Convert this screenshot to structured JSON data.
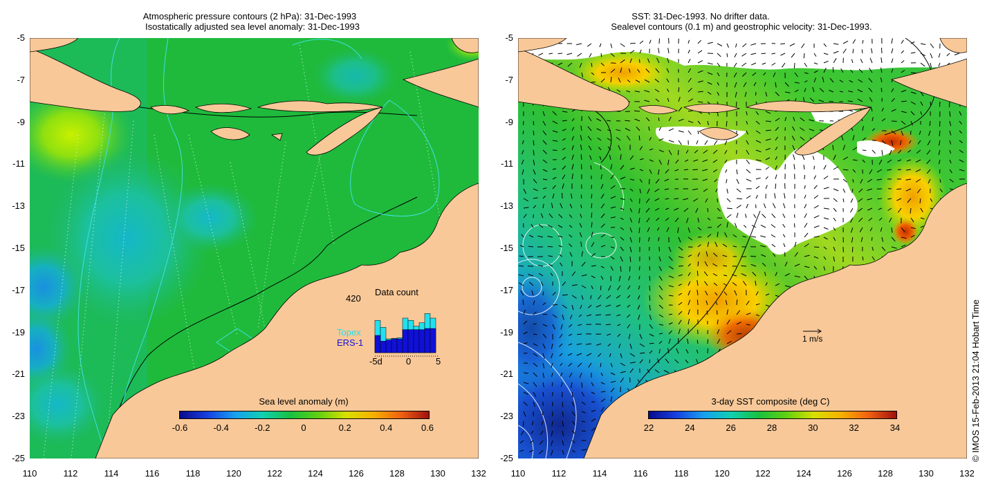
{
  "left_panel": {
    "title_line1": "Atmospheric pressure contours (2 hPa): 31-Dec-1993",
    "title_line2": "Isostatically adjusted sea level anomaly: 31-Dec-1993",
    "colorbar": {
      "label": "Sea level anomaly (m)",
      "ticks": [
        "-0.6",
        "-0.4",
        "-0.2",
        "0",
        "0.2",
        "0.4",
        "0.6"
      ]
    },
    "inset": {
      "title": "Data count",
      "max_label": "420",
      "legend_topex": "Topex",
      "legend_ers1": "ERS-1",
      "x_ticks": [
        "-5d",
        "0",
        "5"
      ],
      "topex_counts": [
        280,
        220,
        120,
        125,
        130,
        300,
        280,
        230,
        260,
        340,
        300
      ],
      "ers1_counts": [
        150,
        100,
        110,
        120,
        120,
        200,
        200,
        200,
        200,
        210,
        210
      ],
      "count_max": 420
    }
  },
  "right_panel": {
    "title_line1": "SST: 31-Dec-1993. No drifter data.",
    "title_line2": "Sealevel contours (0.1 m) and geostrophic velocity: 31-Dec-1993.",
    "colorbar": {
      "label": "3-day SST composite (deg C)",
      "ticks": [
        "22",
        "24",
        "26",
        "28",
        "30",
        "32",
        "34"
      ]
    },
    "velocity_scale_label": "1 m/s"
  },
  "axes": {
    "lat_ticks": [
      "-5",
      "-7",
      "-9",
      "-11",
      "-13",
      "-15",
      "-17",
      "-19",
      "-21",
      "-23",
      "-25"
    ],
    "lon_ticks": [
      "110",
      "112",
      "114",
      "116",
      "118",
      "120",
      "122",
      "124",
      "126",
      "128",
      "130",
      "132"
    ],
    "lat_range": [
      -25,
      -5
    ],
    "lon_range": [
      110,
      132
    ]
  },
  "credit": "© IMOS 15-Feb-2013 21:04 Hobart Time",
  "colors": {
    "land": "#f8c898",
    "ocean_green": "#1fba3c",
    "topex": "#22e0f0",
    "ers1": "#1010d8"
  }
}
